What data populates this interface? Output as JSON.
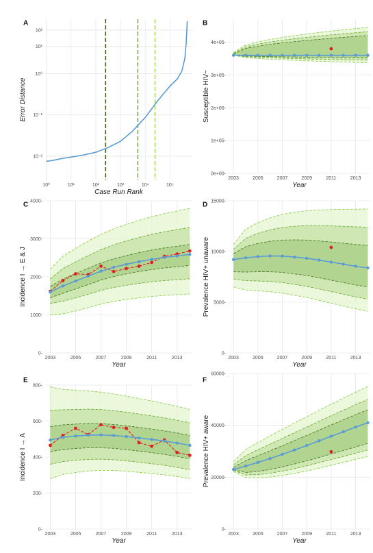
{
  "colors": {
    "median": "#5b9bd5",
    "observed": "#e02020",
    "band_outer": "#e5f5d0",
    "band_mid": "#c6e3a6",
    "band_inner": "#a7cf86",
    "dash_outer": "#8fd14f",
    "dash_mid": "#6fae3a",
    "dash_inner": "#4e7d2c",
    "vline1": "#3f5f1e",
    "vline2": "#6db43c",
    "vline3": "#a5dc5a"
  },
  "chart_data": [
    {
      "panel": "A",
      "type": "line",
      "xlabel": "Case Run Rank",
      "ylabel": "Error Distance",
      "xscale": "log",
      "yscale": "log",
      "xlim": [
        0.9,
        800000
      ],
      "ylim": [
        0.004,
        0.06
      ],
      "xticks": [
        {
          "value": 1,
          "label": "10⁰"
        },
        {
          "value": 10,
          "label": "10¹"
        },
        {
          "value": 100,
          "label": "10²"
        },
        {
          "value": 1000,
          "label": "10³"
        },
        {
          "value": 10000,
          "label": "10⁴"
        },
        {
          "value": 100000,
          "label": "10⁵"
        }
      ],
      "yticks": [
        {
          "value": 0.006,
          "label": "10⁻²"
        },
        {
          "value": 0.012,
          "label": "10⁻¹"
        },
        {
          "value": 0.024,
          "label": "10⁰"
        },
        {
          "value": 0.038,
          "label": "10¹"
        },
        {
          "value": 0.05,
          "label": "10²"
        }
      ],
      "vlines": [
        250,
        5000,
        25000
      ],
      "series": [
        {
          "x": [
            1,
            2,
            5,
            10,
            30,
            100,
            300,
            1000,
            3000,
            10000,
            30000,
            100000,
            200000,
            300000,
            400000,
            450000,
            480000,
            500000
          ],
          "y": [
            0.0055,
            0.0056,
            0.0058,
            0.0059,
            0.0061,
            0.0064,
            0.0069,
            0.0077,
            0.0091,
            0.0115,
            0.015,
            0.0195,
            0.022,
            0.025,
            0.031,
            0.04,
            0.05,
            0.058
          ]
        }
      ]
    },
    {
      "panel": "B",
      "type": "line",
      "xlabel": "Year",
      "ylabel": "Susceptible HIV−",
      "ylim": [
        0,
        470000
      ],
      "xlim": [
        2002.6,
        2014.2
      ],
      "xticks": [
        2003,
        2005,
        2007,
        2009,
        2011,
        2013
      ],
      "yticks": [
        {
          "value": 0,
          "label": "0e+00"
        },
        {
          "value": 100000,
          "label": "1e+05"
        },
        {
          "value": 200000,
          "label": "2e+05"
        },
        {
          "value": 300000,
          "label": "3e+05"
        },
        {
          "value": 400000,
          "label": "4e+05"
        }
      ],
      "x": [
        2003,
        2004,
        2005,
        2006,
        2007,
        2008,
        2009,
        2010,
        2011,
        2012,
        2013,
        2014
      ],
      "median": [
        360000,
        360000,
        360000,
        360000,
        360000,
        360000,
        360000,
        360000,
        360000,
        360000,
        360000,
        360000
      ],
      "bands": [
        [
          360000,
          368000,
          445000,
          352000,
          337000
        ],
        [
          360000,
          366000,
          432000,
          354000,
          345000
        ],
        [
          360000,
          364000,
          420000,
          356000,
          352000
        ]
      ],
      "observed": {
        "x": [
          2011
        ],
        "y": [
          380000
        ]
      }
    },
    {
      "panel": "C",
      "type": "line",
      "xlabel": "Year",
      "ylabel": "Incidence I → E & J",
      "ylim": [
        0,
        4000
      ],
      "xlim": [
        2002.6,
        2014.2
      ],
      "xticks": [
        2003,
        2005,
        2007,
        2009,
        2011,
        2013
      ],
      "yticks": [
        {
          "value": 0,
          "label": "0"
        },
        {
          "value": 1000,
          "label": "1000"
        },
        {
          "value": 2000,
          "label": "2000"
        },
        {
          "value": 3000,
          "label": "3000"
        },
        {
          "value": 4000,
          "label": "4000"
        }
      ],
      "x": [
        2003,
        2004,
        2005,
        2006,
        2007,
        2008,
        2009,
        2010,
        2011,
        2012,
        2013,
        2014
      ],
      "median": [
        1600,
        1760,
        1890,
        2020,
        2150,
        2250,
        2330,
        2400,
        2460,
        2510,
        2550,
        2590
      ],
      "bands": [
        [
          1000,
          2200,
          3800,
          1550,
          1550
        ],
        [
          1300,
          1950,
          3300,
          1800,
          1950
        ],
        [
          1450,
          1750,
          2850,
          2000,
          2300
        ]
      ],
      "observed": {
        "x": [
          2003,
          2004,
          2005,
          2006,
          2007,
          2008,
          2009,
          2010,
          2011,
          2012,
          2013,
          2014
        ],
        "y": [
          1620,
          1900,
          2080,
          2060,
          2280,
          2140,
          2220,
          2280,
          2380,
          2540,
          2600,
          2680
        ]
      }
    },
    {
      "panel": "D",
      "type": "line",
      "xlabel": "Year",
      "ylabel": "Prevalence HIV+ unaware",
      "ylim": [
        0,
        15000
      ],
      "xlim": [
        2002.6,
        2014.2
      ],
      "xticks": [
        2003,
        2005,
        2007,
        2009,
        2011,
        2013
      ],
      "yticks": [
        {
          "value": 0,
          "label": "0"
        },
        {
          "value": 5000,
          "label": "5000"
        },
        {
          "value": 10000,
          "label": "10000"
        },
        {
          "value": 15000,
          "label": "15000"
        }
      ],
      "x": [
        2003,
        2004,
        2005,
        2006,
        2007,
        2008,
        2009,
        2010,
        2011,
        2012,
        2013,
        2014
      ],
      "median": [
        9200,
        9380,
        9500,
        9560,
        9550,
        9450,
        9330,
        9150,
        8950,
        8750,
        8550,
        8380
      ],
      "bands": [
        [
          6500,
          10700,
          14200,
          4100,
          4100
        ],
        [
          7300,
          10200,
          12400,
          5300,
          5300
        ],
        [
          8000,
          9800,
          10600,
          6500,
          6500
        ]
      ],
      "observed": {
        "x": [
          2011
        ],
        "y": [
          10400
        ]
      }
    },
    {
      "panel": "E",
      "type": "line",
      "xlabel": "Year",
      "ylabel": "Incidence I → A",
      "ylim": [
        0,
        800
      ],
      "xlim": [
        2002.6,
        2014.2
      ],
      "xticks": [
        2003,
        2005,
        2007,
        2009,
        2011,
        2013
      ],
      "yticks": [
        {
          "value": 0,
          "label": "0"
        },
        {
          "value": 200,
          "label": "200"
        },
        {
          "value": 400,
          "label": "400"
        },
        {
          "value": 600,
          "label": "600"
        },
        {
          "value": 800,
          "label": "800"
        }
      ],
      "x": [
        2003,
        2004,
        2005,
        2006,
        2007,
        2008,
        2009,
        2010,
        2011,
        2012,
        2013,
        2014
      ],
      "median": [
        495,
        510,
        517,
        522,
        523,
        520,
        514,
        506,
        498,
        489,
        478,
        465
      ],
      "bands": [
        [
          280,
          790,
          665,
          280,
          280
        ],
        [
          360,
          660,
          590,
          340,
          330
        ],
        [
          430,
          570,
          520,
          400,
          390
        ]
      ],
      "observed": {
        "x": [
          2003,
          2004,
          2005,
          2006,
          2007,
          2008,
          2009,
          2010,
          2011,
          2012,
          2013,
          2014
        ],
        "y": [
          465,
          520,
          560,
          525,
          580,
          565,
          560,
          480,
          460,
          495,
          425,
          410
        ]
      }
    },
    {
      "panel": "F",
      "type": "line",
      "xlabel": "Year",
      "ylabel": "Prevalence HIV+ aware",
      "ylim": [
        0,
        60000
      ],
      "xlim": [
        2002.6,
        2014.2
      ],
      "xticks": [
        2003,
        2005,
        2007,
        2009,
        2011,
        2013
      ],
      "yticks": [
        {
          "value": 0,
          "label": "0"
        },
        {
          "value": 20000,
          "label": "20000"
        },
        {
          "value": 40000,
          "label": "40000"
        },
        {
          "value": 60000,
          "label": "60000"
        }
      ],
      "x": [
        2003,
        2004,
        2005,
        2006,
        2007,
        2008,
        2009,
        2010,
        2011,
        2012,
        2013,
        2014
      ],
      "median": [
        23000,
        24300,
        25700,
        27200,
        28800,
        30500,
        32200,
        34000,
        35800,
        37500,
        39300,
        41000
      ],
      "bands": [
        [
          22200,
          26000,
          55000,
          22000,
          28000
        ],
        [
          22600,
          24800,
          50000,
          22300,
          30500
        ],
        [
          22900,
          23800,
          46000,
          22600,
          33000
        ]
      ],
      "observed": {
        "x": [
          2011
        ],
        "y": [
          29800
        ]
      }
    }
  ]
}
